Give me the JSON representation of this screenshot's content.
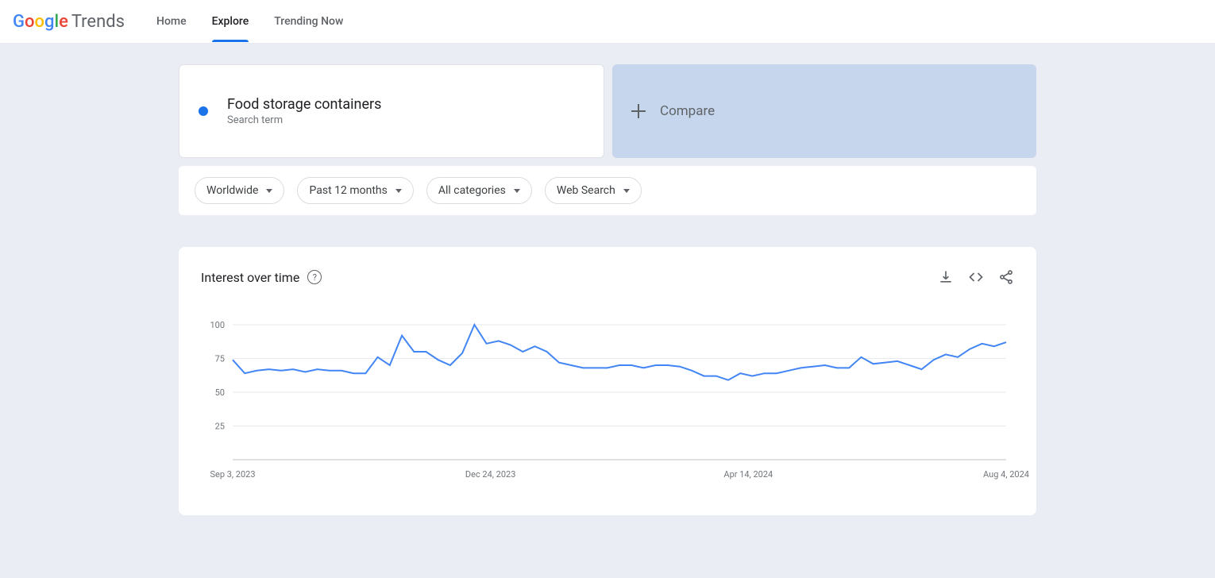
{
  "header": {
    "logo_part1": "Google",
    "logo_part2": "Trends",
    "nav": [
      {
        "label": "Home",
        "active": false
      },
      {
        "label": "Explore",
        "active": true
      },
      {
        "label": "Trending Now",
        "active": false
      }
    ]
  },
  "search": {
    "term": "Food storage containers",
    "subtitle": "Search term",
    "dot_color": "#1a73e8",
    "compare_label": "Compare"
  },
  "filters": [
    {
      "label": "Worldwide"
    },
    {
      "label": "Past 12 months"
    },
    {
      "label": "All categories"
    },
    {
      "label": "Web Search"
    }
  ],
  "chart": {
    "title": "Interest over time",
    "type": "line",
    "y_ticks": [
      25,
      50,
      75,
      100
    ],
    "ylim": [
      0,
      100
    ],
    "x_ticks": [
      "Sep 3, 2023",
      "Dec 24, 2023",
      "Apr 14, 2024",
      "Aug 4, 2024"
    ],
    "series_color": "#4285f4",
    "grid_color": "#e8eaed",
    "baseline_color": "#bdc1c6",
    "label_color": "#70757a",
    "background_color": "#ffffff",
    "values": [
      74,
      64,
      66,
      67,
      66,
      67,
      65,
      67,
      66,
      66,
      64,
      64,
      76,
      70,
      92,
      80,
      80,
      74,
      70,
      79,
      100,
      86,
      88,
      85,
      80,
      84,
      80,
      72,
      70,
      68,
      68,
      68,
      70,
      70,
      68,
      70,
      70,
      69,
      66,
      62,
      62,
      59,
      64,
      62,
      64,
      64,
      66,
      68,
      69,
      70,
      68,
      68,
      76,
      71,
      72,
      73,
      70,
      67,
      74,
      78,
      76,
      82,
      86,
      84,
      87
    ],
    "label_fontsize": 11,
    "line_width": 2
  }
}
